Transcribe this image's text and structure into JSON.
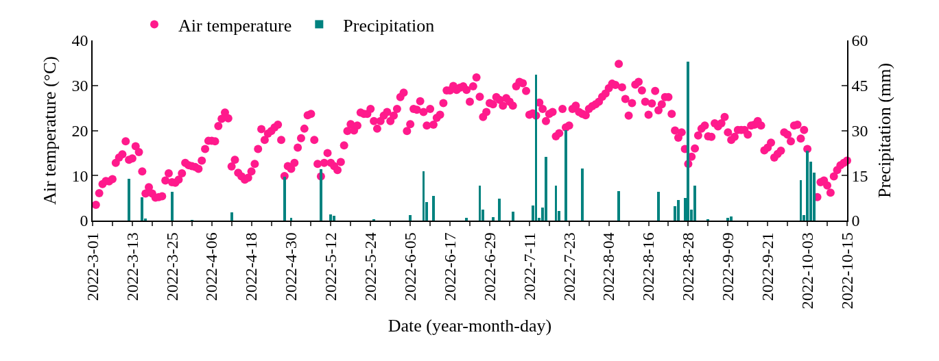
{
  "chart_data": {
    "type": "scatter",
    "xlabel": "Date (year-month-day)",
    "ylabel": "Air temperature (°C)",
    "y2label": "Precipitation (mm)",
    "legend": "top",
    "marker": "circle",
    "xlim": [
      "2022-03-01",
      "2022-10-15"
    ],
    "xticks": [
      {
        "value": "2022-03-01",
        "label": "2022-3-01"
      },
      {
        "value": "2022-03-07",
        "label": null
      },
      {
        "value": "2022-03-13",
        "label": "2022-3-13"
      },
      {
        "value": "2022-03-19",
        "label": null
      },
      {
        "value": "2022-03-25",
        "label": "2022-3-25"
      },
      {
        "value": "2022-03-31",
        "label": null
      },
      {
        "value": "2022-04-06",
        "label": "2022-4-06"
      },
      {
        "value": "2022-04-12",
        "label": null
      },
      {
        "value": "2022-04-18",
        "label": "2022-4-18"
      },
      {
        "value": "2022-04-24",
        "label": null
      },
      {
        "value": "2022-04-30",
        "label": "2022-4-30"
      },
      {
        "value": "2022-05-06",
        "label": null
      },
      {
        "value": "2022-05-12",
        "label": "2022-5-12"
      },
      {
        "value": "2022-05-18",
        "label": null
      },
      {
        "value": "2022-05-24",
        "label": "2022-5-24"
      },
      {
        "value": "2022-05-30",
        "label": null
      },
      {
        "value": "2022-06-05",
        "label": "2022-6-05"
      },
      {
        "value": "2022-06-11",
        "label": null
      },
      {
        "value": "2022-06-17",
        "label": "2022-6-17"
      },
      {
        "value": "2022-06-23",
        "label": null
      },
      {
        "value": "2022-06-29",
        "label": "2022-6-29"
      },
      {
        "value": "2022-07-05",
        "label": null
      },
      {
        "value": "2022-07-11",
        "label": "2022-7-11"
      },
      {
        "value": "2022-07-17",
        "label": null
      },
      {
        "value": "2022-07-23",
        "label": "2022-7-23"
      },
      {
        "value": "2022-07-29",
        "label": null
      },
      {
        "value": "2022-08-04",
        "label": "2022-8-04"
      },
      {
        "value": "2022-08-10",
        "label": null
      },
      {
        "value": "2022-08-16",
        "label": "2022-8-16"
      },
      {
        "value": "2022-08-22",
        "label": null
      },
      {
        "value": "2022-08-28",
        "label": "2022-8-28"
      },
      {
        "value": "2022-09-03",
        "label": null
      },
      {
        "value": "2022-09-09",
        "label": "2022-9-09"
      },
      {
        "value": "2022-09-15",
        "label": null
      },
      {
        "value": "2022-09-21",
        "label": "2022-9-21"
      },
      {
        "value": "2022-09-27",
        "label": null
      },
      {
        "value": "2022-10-03",
        "label": "2022-10-03"
      },
      {
        "value": "2022-10-09",
        "label": null
      },
      {
        "value": "2022-10-15",
        "label": "2022-10-15"
      }
    ],
    "ylim": [
      0,
      40
    ],
    "yticks": [
      0,
      10,
      20,
      30,
      40
    ],
    "y2lim": [
      0,
      60
    ],
    "y2ticks": [
      0,
      15,
      30,
      45,
      60
    ],
    "series": [
      {
        "name": "Air temperature",
        "color": "#ff1a8c",
        "x": [
          "2022-03-02",
          "2022-03-03",
          "2022-03-04",
          "2022-03-05",
          "2022-03-06",
          "2022-03-07",
          "2022-03-08",
          "2022-03-09",
          "2022-03-10",
          "2022-03-11",
          "2022-03-12",
          "2022-03-13",
          "2022-03-14",
          "2022-03-15",
          "2022-03-16",
          "2022-03-17",
          "2022-03-18",
          "2022-03-19",
          "2022-03-20",
          "2022-03-21",
          "2022-03-22",
          "2022-03-23",
          "2022-03-24",
          "2022-03-25",
          "2022-03-26",
          "2022-03-27",
          "2022-03-28",
          "2022-03-29",
          "2022-03-30",
          "2022-03-31",
          "2022-04-01",
          "2022-04-02",
          "2022-04-03",
          "2022-04-04",
          "2022-04-05",
          "2022-04-06",
          "2022-04-07",
          "2022-04-08",
          "2022-04-09",
          "2022-04-10",
          "2022-04-11",
          "2022-04-12",
          "2022-04-13",
          "2022-04-14",
          "2022-04-15",
          "2022-04-16",
          "2022-04-17",
          "2022-04-18",
          "2022-04-19",
          "2022-04-20",
          "2022-04-21",
          "2022-04-22",
          "2022-04-23",
          "2022-04-24",
          "2022-04-25",
          "2022-04-26",
          "2022-04-27",
          "2022-04-28",
          "2022-04-29",
          "2022-04-30",
          "2022-05-01",
          "2022-05-02",
          "2022-05-03",
          "2022-05-04",
          "2022-05-05",
          "2022-05-06",
          "2022-05-07",
          "2022-05-08",
          "2022-05-09",
          "2022-05-10",
          "2022-05-11",
          "2022-05-12",
          "2022-05-13",
          "2022-05-14",
          "2022-05-15",
          "2022-05-16",
          "2022-05-17",
          "2022-05-18",
          "2022-05-19",
          "2022-05-20",
          "2022-05-21",
          "2022-05-22",
          "2022-05-23",
          "2022-05-24",
          "2022-05-25",
          "2022-05-26",
          "2022-05-27",
          "2022-05-28",
          "2022-05-29",
          "2022-05-30",
          "2022-05-31",
          "2022-06-01",
          "2022-06-02",
          "2022-06-03",
          "2022-06-04",
          "2022-06-05",
          "2022-06-06",
          "2022-06-07",
          "2022-06-08",
          "2022-06-09",
          "2022-06-10",
          "2022-06-11",
          "2022-06-12",
          "2022-06-13",
          "2022-06-14",
          "2022-06-15",
          "2022-06-16",
          "2022-06-17",
          "2022-06-18",
          "2022-06-19",
          "2022-06-20",
          "2022-06-21",
          "2022-06-22",
          "2022-06-23",
          "2022-06-24",
          "2022-06-25",
          "2022-06-26",
          "2022-06-27",
          "2022-06-28",
          "2022-06-29",
          "2022-06-30",
          "2022-07-01",
          "2022-07-02",
          "2022-07-03",
          "2022-07-04",
          "2022-07-05",
          "2022-07-06",
          "2022-07-07",
          "2022-07-08",
          "2022-07-09",
          "2022-07-10",
          "2022-07-11",
          "2022-07-12",
          "2022-07-13",
          "2022-07-14",
          "2022-07-15",
          "2022-07-16",
          "2022-07-17",
          "2022-07-18",
          "2022-07-19",
          "2022-07-20",
          "2022-07-21",
          "2022-07-22",
          "2022-07-23",
          "2022-07-24",
          "2022-07-25",
          "2022-07-26",
          "2022-07-27",
          "2022-07-28",
          "2022-07-29",
          "2022-07-30",
          "2022-07-31",
          "2022-08-01",
          "2022-08-02",
          "2022-08-03",
          "2022-08-04",
          "2022-08-05",
          "2022-08-06",
          "2022-08-07",
          "2022-08-08",
          "2022-08-09",
          "2022-08-10",
          "2022-08-11",
          "2022-08-12",
          "2022-08-13",
          "2022-08-14",
          "2022-08-15",
          "2022-08-16",
          "2022-08-17",
          "2022-08-18",
          "2022-08-19",
          "2022-08-20",
          "2022-08-21",
          "2022-08-22",
          "2022-08-23",
          "2022-08-24",
          "2022-08-25",
          "2022-08-26",
          "2022-08-27",
          "2022-08-28",
          "2022-08-29",
          "2022-08-30",
          "2022-08-31",
          "2022-09-01",
          "2022-09-02",
          "2022-09-03",
          "2022-09-04",
          "2022-09-05",
          "2022-09-06",
          "2022-09-07",
          "2022-09-08",
          "2022-09-09",
          "2022-09-10",
          "2022-09-11",
          "2022-09-12",
          "2022-09-13",
          "2022-09-14",
          "2022-09-15",
          "2022-09-16",
          "2022-09-17",
          "2022-09-18",
          "2022-09-19",
          "2022-09-20",
          "2022-09-21",
          "2022-09-22",
          "2022-09-23",
          "2022-09-24",
          "2022-09-25",
          "2022-09-26",
          "2022-09-27",
          "2022-09-28",
          "2022-09-29",
          "2022-09-30",
          "2022-10-01",
          "2022-10-02",
          "2022-10-03",
          "2022-10-06",
          "2022-10-07",
          "2022-10-08",
          "2022-10-09",
          "2022-10-10",
          "2022-10-11",
          "2022-10-12",
          "2022-10-13",
          "2022-10-14",
          "2022-10-15"
        ],
        "values": [
          3.5,
          6.1,
          8.1,
          8.8,
          8.7,
          9.2,
          12.8,
          14.0,
          14.7,
          17.6,
          13.5,
          13.8,
          16.5,
          15.2,
          10.9,
          6.0,
          7.4,
          6.0,
          5.1,
          5.2,
          5.4,
          8.9,
          10.5,
          8.5,
          8.4,
          9.1,
          10.5,
          12.8,
          12.3,
          12.1,
          11.9,
          11.5,
          13.3,
          15.9,
          17.7,
          17.7,
          17.6,
          21.0,
          22.6,
          24.0,
          22.7,
          12.0,
          13.5,
          10.6,
          9.8,
          9.1,
          9.5,
          10.9,
          12.6,
          15.9,
          20.3,
          17.9,
          19.3,
          19.9,
          20.7,
          21.3,
          17.9,
          9.9,
          12.1,
          11.5,
          12.8,
          16.2,
          18.3,
          20.4,
          23.4,
          23.7,
          17.9,
          12.6,
          9.8,
          12.8,
          15.0,
          12.8,
          12.1,
          11.2,
          13.0,
          16.7,
          19.9,
          21.4,
          20.0,
          21.1,
          24.0,
          23.7,
          23.7,
          24.8,
          22.1,
          20.4,
          22.1,
          23.3,
          24.1,
          22.1,
          23.3,
          24.8,
          27.4,
          28.4,
          19.9,
          21.4,
          24.8,
          24.6,
          26.5,
          24.1,
          21.1,
          24.8,
          21.3,
          22.8,
          23.5,
          26.1,
          28.9,
          28.9,
          29.9,
          29.0,
          29.5,
          29.8,
          29.0,
          26.4,
          29.8,
          31.8,
          27.5,
          23.0,
          24.1,
          26.1,
          25.8,
          27.4,
          26.8,
          25.5,
          27.2,
          26.4,
          25.5,
          29.8,
          30.8,
          30.5,
          28.8,
          23.5,
          23.8,
          23.3,
          26.2,
          24.8,
          22.1,
          23.7,
          24.1,
          18.7,
          19.4,
          24.8,
          20.7,
          21.1,
          24.8,
          25.5,
          24.1,
          23.7,
          23.4,
          24.8,
          25.4,
          25.8,
          26.4,
          27.5,
          28.2,
          29.4,
          30.4,
          30.1,
          34.8,
          29.6,
          27.0,
          23.3,
          26.1,
          30.2,
          30.8,
          28.9,
          26.4,
          23.5,
          26.0,
          28.8,
          24.5,
          25.8,
          27.4,
          27.4,
          23.7,
          20.0,
          18.4,
          19.6,
          15.9,
          12.6,
          14.2,
          16.0,
          18.9,
          20.4,
          21.1,
          18.7,
          18.6,
          21.6,
          20.9,
          21.6,
          23.0,
          19.6,
          17.9,
          18.6,
          20.1,
          20.1,
          20.1,
          19.1,
          21.1,
          21.3,
          22.1,
          21.1,
          15.6,
          16.2,
          17.3,
          14.0,
          14.8,
          15.5,
          19.6,
          19.1,
          17.6,
          21.1,
          21.3,
          18.2,
          20.1,
          15.9,
          5.2,
          8.5,
          8.9,
          7.8,
          6.2,
          9.8,
          11.2,
          12.3,
          12.8,
          13.3
        ]
      },
      {
        "name": "Precipitation",
        "type": "bar",
        "axis": "y2",
        "color": "#00827f",
        "x": [
          "2022-03-12",
          "2022-03-16",
          "2022-03-17",
          "2022-03-25",
          "2022-03-31",
          "2022-04-12",
          "2022-04-28",
          "2022-04-30",
          "2022-05-09",
          "2022-05-12",
          "2022-05-13",
          "2022-05-25",
          "2022-06-05",
          "2022-06-09",
          "2022-06-10",
          "2022-06-12",
          "2022-06-22",
          "2022-06-26",
          "2022-06-27",
          "2022-06-30",
          "2022-07-02",
          "2022-07-06",
          "2022-07-12",
          "2022-07-13",
          "2022-07-14",
          "2022-07-15",
          "2022-07-16",
          "2022-07-19",
          "2022-07-20",
          "2022-07-22",
          "2022-07-27",
          "2022-08-07",
          "2022-08-19",
          "2022-08-24",
          "2022-08-25",
          "2022-08-27",
          "2022-08-28",
          "2022-08-29",
          "2022-08-30",
          "2022-09-03",
          "2022-09-09",
          "2022-09-10",
          "2022-10-01",
          "2022-10-02",
          "2022-10-03",
          "2022-10-04",
          "2022-10-05"
        ],
        "values": [
          14.0,
          7.7,
          0.6,
          9.6,
          0.2,
          2.8,
          14.5,
          1.0,
          17.0,
          2.1,
          1.5,
          0.3,
          1.9,
          16.4,
          6.2,
          8.3,
          0.8,
          11.7,
          3.6,
          1.1,
          7.2,
          3.0,
          5.1,
          48.7,
          1.0,
          4.3,
          21.3,
          11.7,
          3.2,
          30.2,
          17.4,
          9.8,
          9.6,
          4.7,
          6.8,
          7.5,
          53.0,
          3.6,
          11.7,
          0.3,
          0.8,
          1.3,
          13.4,
          1.9,
          23.2,
          19.6,
          16.0
        ]
      }
    ]
  }
}
